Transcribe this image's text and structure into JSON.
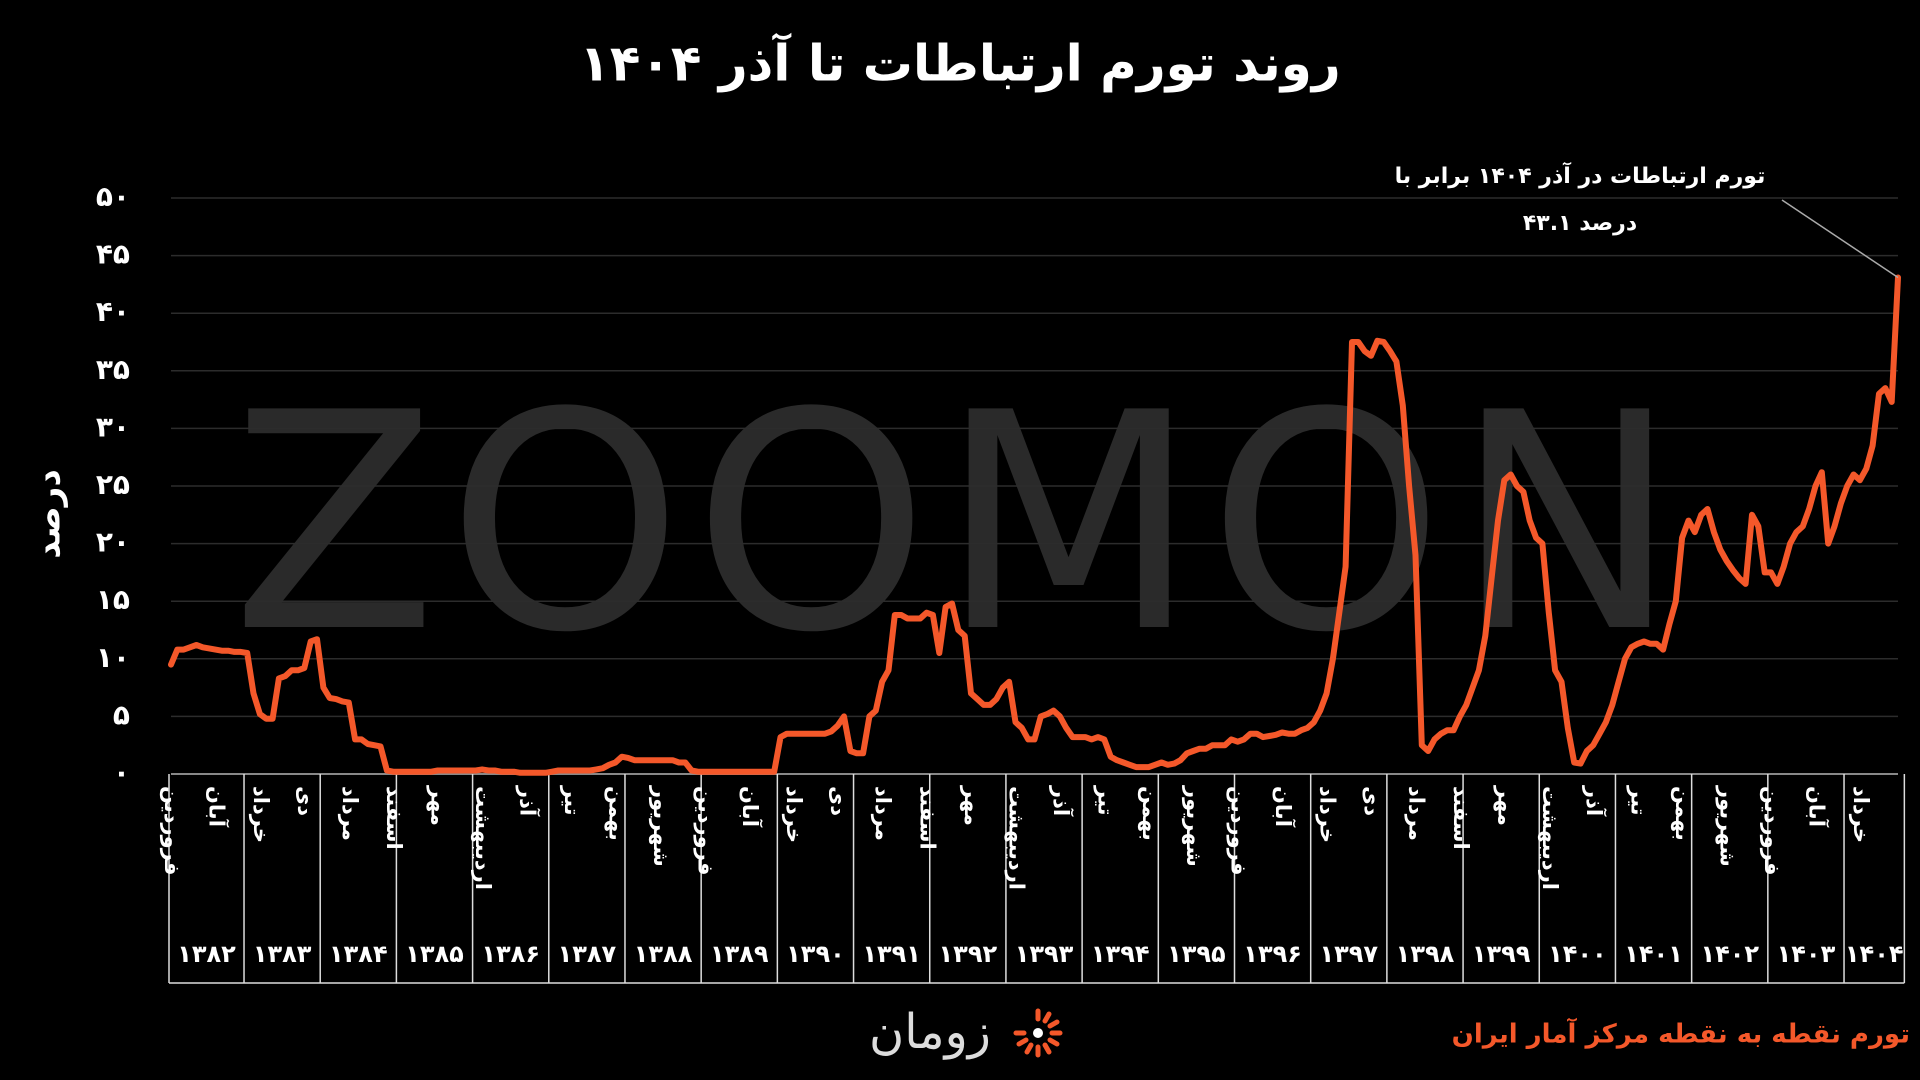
{
  "chart_data": {
    "type": "line",
    "title": "روند تورم ارتباطات تا آذر ۱۴۰۴",
    "y_label": "درصد",
    "watermark": "ZOOMON",
    "brand": "زومان",
    "source": "تورم نقطه به نقطه مرکز آمار ایران",
    "annotation": [
      "تورم ارتباطات در آذر ۱۴۰۴ برابر با",
      "۴۳.۱ درصد"
    ],
    "grid": true,
    "ylim": [
      0,
      50
    ],
    "yticks": [
      {
        "value": 0,
        "label": "۰"
      },
      {
        "value": 5,
        "label": "۵"
      },
      {
        "value": 10,
        "label": "۱۰"
      },
      {
        "value": 15,
        "label": "۱۵"
      },
      {
        "value": 20,
        "label": "۲۰"
      },
      {
        "value": 25,
        "label": "۲۵"
      },
      {
        "value": 30,
        "label": "۳۰"
      },
      {
        "value": 35,
        "label": "۳۵"
      },
      {
        "value": 40,
        "label": "۴۰"
      },
      {
        "value": 45,
        "label": "۴۵"
      },
      {
        "value": 50,
        "label": "۵۰"
      }
    ],
    "year_groups": [
      "۱۳۸۲",
      "۱۳۸۳",
      "۱۳۸۴",
      "۱۳۸۵",
      "۱۳۸۶",
      "۱۳۸۷",
      "۱۳۸۸",
      "۱۳۸۹",
      "۱۳۹۰",
      "۱۳۹۱",
      "۱۳۹۲",
      "۱۳۹۳",
      "۱۳۹۴",
      "۱۳۹۵",
      "۱۳۹۶",
      "۱۳۹۷",
      "۱۳۹۸",
      "۱۳۹۹",
      "۱۴۰۰",
      "۱۴۰۱",
      "۱۴۰۲",
      "۱۴۰۳",
      "۱۴۰۴"
    ],
    "categories": [
      "فروردین",
      null,
      null,
      null,
      null,
      null,
      null,
      "آبان",
      null,
      null,
      null,
      null,
      null,
      null,
      "خرداد",
      null,
      null,
      null,
      null,
      null,
      null,
      "دی",
      null,
      null,
      null,
      null,
      null,
      null,
      "مرداد",
      null,
      null,
      null,
      null,
      null,
      null,
      "اسفند",
      null,
      null,
      null,
      null,
      null,
      null,
      "مهر",
      null,
      null,
      null,
      null,
      null,
      null,
      "اردیبهشت",
      null,
      null,
      null,
      null,
      null,
      null,
      "آذر",
      null,
      null,
      null,
      null,
      null,
      null,
      "تیر",
      null,
      null,
      null,
      null,
      null,
      null,
      "بهمن",
      null,
      null,
      null,
      null,
      null,
      null,
      "شهریور",
      null,
      null,
      null,
      null,
      null,
      null,
      "فروردین",
      null,
      null,
      null,
      null,
      null,
      null,
      "آبان",
      null,
      null,
      null,
      null,
      null,
      null,
      "خرداد",
      null,
      null,
      null,
      null,
      null,
      null,
      "دی",
      null,
      null,
      null,
      null,
      null,
      null,
      "مرداد",
      null,
      null,
      null,
      null,
      null,
      null,
      "اسفند",
      null,
      null,
      null,
      null,
      null,
      null,
      "مهر",
      null,
      null,
      null,
      null,
      null,
      null,
      "اردیبهشت",
      null,
      null,
      null,
      null,
      null,
      null,
      "آذر",
      null,
      null,
      null,
      null,
      null,
      null,
      "تیر",
      null,
      null,
      null,
      null,
      null,
      null,
      "بهمن",
      null,
      null,
      null,
      null,
      null,
      null,
      "شهریور",
      null,
      null,
      null,
      null,
      null,
      null,
      "فروردین",
      null,
      null,
      null,
      null,
      null,
      null,
      "آبان",
      null,
      null,
      null,
      null,
      null,
      null,
      "خرداد",
      null,
      null,
      null,
      null,
      null,
      null,
      "دی",
      null,
      null,
      null,
      null,
      null,
      null,
      "مرداد",
      null,
      null,
      null,
      null,
      null,
      null,
      "اسفند",
      null,
      null,
      null,
      null,
      null,
      null,
      "مهر",
      null,
      null,
      null,
      null,
      null,
      null,
      "اردیبهشت",
      null,
      null,
      null,
      null,
      null,
      null,
      "آذر",
      null,
      null,
      null,
      null,
      null,
      null,
      "تیر",
      null,
      null,
      null,
      null,
      null,
      null,
      "بهمن",
      null,
      null,
      null,
      null,
      null,
      null,
      "شهریور",
      null,
      null,
      null,
      null,
      null,
      null,
      "فروردین",
      null,
      null,
      null,
      null,
      null,
      null,
      "آبان",
      null,
      null,
      null,
      null,
      null,
      null,
      "خرداد",
      null,
      null,
      null,
      null,
      null,
      null
    ],
    "series": [
      {
        "color": "#f4582a",
        "values": [
          9.5,
          10.8,
          10.8,
          11,
          11.2,
          11,
          10.9,
          10.8,
          10.7,
          10.7,
          10.6,
          10.6,
          10.5,
          7,
          5.2,
          4.8,
          4.8,
          8.3,
          8.5,
          9,
          9,
          9.2,
          11.5,
          11.7,
          7.5,
          6.6,
          6.5,
          6.3,
          6.2,
          3,
          3,
          2.6,
          2.5,
          2.4,
          0.3,
          0.2,
          0.2,
          0.2,
          0.2,
          0.2,
          0.2,
          0.2,
          0.3,
          0.3,
          0.3,
          0.3,
          0.3,
          0.3,
          0.3,
          0.4,
          0.3,
          0.3,
          0.2,
          0.2,
          0.2,
          0.1,
          0.1,
          0.1,
          0.1,
          0.1,
          0.2,
          0.3,
          0.3,
          0.3,
          0.3,
          0.3,
          0.3,
          0.4,
          0.5,
          0.8,
          1,
          1.5,
          1.4,
          1.2,
          1.2,
          1.2,
          1.2,
          1.2,
          1.2,
          1.2,
          1,
          1,
          0.3,
          0.2,
          0.2,
          0.2,
          0.2,
          0.2,
          0.2,
          0.2,
          0.2,
          0.2,
          0.2,
          0.2,
          0.2,
          0.2,
          3.2,
          3.5,
          3.5,
          3.5,
          3.5,
          3.5,
          3.5,
          3.5,
          3.7,
          4.2,
          5,
          2,
          1.8,
          1.8,
          5,
          5.5,
          8,
          9,
          13.8,
          13.8,
          13.5,
          13.5,
          13.5,
          14,
          13.8,
          10.5,
          14.5,
          14.8,
          12.5,
          12,
          7,
          6.5,
          6,
          6,
          6.5,
          7.5,
          8,
          4.5,
          4,
          3,
          3,
          5,
          5.2,
          5.5,
          5,
          4,
          3.2,
          3.2,
          3.2,
          3,
          3.2,
          3,
          1.5,
          1.2,
          1,
          0.8,
          0.6,
          0.6,
          0.6,
          0.8,
          1,
          0.8,
          0.9,
          1.2,
          1.8,
          2,
          2.2,
          2.2,
          2.5,
          2.5,
          2.5,
          3,
          2.8,
          3,
          3.5,
          3.5,
          3.2,
          3.3,
          3.4,
          3.6,
          3.5,
          3.5,
          3.8,
          4,
          4.5,
          5.5,
          7,
          10,
          14,
          18,
          37.5,
          37.5,
          36.7,
          36.3,
          37.6,
          37.5,
          36.7,
          35.8,
          32,
          25,
          19,
          2.5,
          2,
          3,
          3.5,
          3.8,
          3.8,
          5,
          6,
          7.5,
          9,
          12,
          17,
          22,
          25.5,
          26,
          25,
          24.5,
          22,
          20.5,
          20,
          14,
          9,
          8,
          4,
          1,
          0.9,
          2,
          2.5,
          3.5,
          4.5,
          6,
          8,
          10,
          11,
          11.3,
          11.5,
          11.3,
          11.3,
          10.8,
          13,
          15,
          20.5,
          22,
          21,
          22.5,
          23,
          21,
          19.5,
          18.5,
          17.7,
          17,
          16.5,
          22.5,
          21.5,
          17.5,
          17.5,
          16.5,
          18,
          20,
          21,
          21.5,
          23,
          25,
          26.2,
          20,
          21.5,
          23.5,
          25,
          26,
          25.5,
          26.5,
          28.5,
          33,
          33.5,
          32.3,
          43.1
        ]
      }
    ]
  }
}
